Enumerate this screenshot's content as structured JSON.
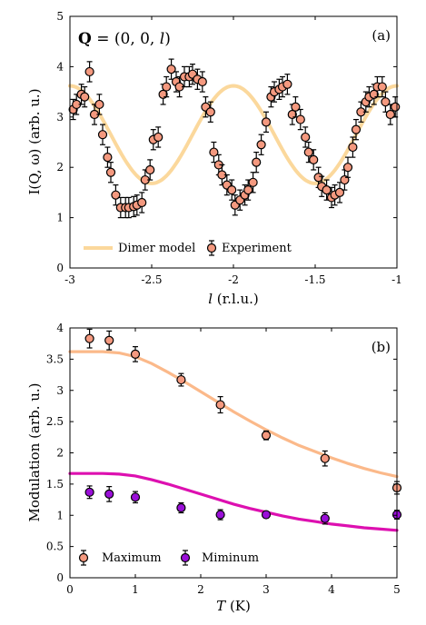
{
  "chart_data": [
    {
      "type": "scatter",
      "panel_label": "(a)",
      "annotation": "Q = (0, 0, l)",
      "xlabel_symbol": "l",
      "xlabel_unit": "(r.l.u.)",
      "ylabel": "I(Q, ω) (arb. u.)",
      "xlim": [
        -3,
        -1
      ],
      "ylim": [
        0,
        5
      ],
      "xticks": [
        -3,
        -2.5,
        -2,
        -1.5,
        -1
      ],
      "xtick_labels": [
        "-3",
        "-2.5",
        "-2",
        "-1.5",
        "-1"
      ],
      "yticks": [
        0,
        1,
        2,
        3,
        4,
        5
      ],
      "ytick_labels": [
        "0",
        "1",
        "2",
        "3",
        "4",
        "5"
      ],
      "legend": [
        "Dimer model",
        "Experiment"
      ],
      "legend_placement": "bottom-left",
      "grid": false,
      "line": {
        "name": "Dimer model",
        "color": "#fbd89c",
        "formula": "2.65 + 0.97*cos(2*pi*l)"
      },
      "series": [
        {
          "name": "Experiment",
          "color": "#f4997f",
          "x": [
            -2.98,
            -2.96,
            -2.93,
            -2.91,
            -2.88,
            -2.85,
            -2.82,
            -2.8,
            -2.77,
            -2.75,
            -2.72,
            -2.69,
            -2.66,
            -2.64,
            -2.61,
            -2.59,
            -2.56,
            -2.54,
            -2.51,
            -2.49,
            -2.46,
            -2.43,
            -2.41,
            -2.38,
            -2.35,
            -2.33,
            -2.3,
            -2.27,
            -2.25,
            -2.22,
            -2.19,
            -2.17,
            -2.14,
            -2.12,
            -2.09,
            -2.07,
            -2.04,
            -2.01,
            -1.99,
            -1.96,
            -1.93,
            -1.91,
            -1.88,
            -1.86,
            -1.83,
            -1.8,
            -1.77,
            -1.75,
            -1.72,
            -1.7,
            -1.67,
            -1.64,
            -1.62,
            -1.59,
            -1.56,
            -1.54,
            -1.51,
            -1.48,
            -1.46,
            -1.43,
            -1.4,
            -1.38,
            -1.35,
            -1.32,
            -1.3,
            -1.27,
            -1.25,
            -1.22,
            -1.19,
            -1.17,
            -1.14,
            -1.12,
            -1.09,
            -1.07,
            -1.04,
            -1.01
          ],
          "y": [
            3.15,
            3.25,
            3.45,
            3.4,
            3.9,
            3.05,
            3.25,
            2.65,
            2.2,
            1.9,
            1.45,
            1.2,
            1.2,
            1.2,
            1.22,
            1.25,
            1.3,
            1.75,
            1.95,
            2.55,
            2.6,
            3.45,
            3.6,
            3.95,
            3.7,
            3.6,
            3.8,
            3.8,
            3.85,
            3.75,
            3.7,
            3.2,
            3.1,
            2.3,
            2.05,
            1.85,
            1.65,
            1.55,
            1.25,
            1.35,
            1.45,
            1.55,
            1.7,
            2.1,
            2.45,
            2.9,
            3.4,
            3.5,
            3.55,
            3.6,
            3.65,
            3.05,
            3.2,
            2.95,
            2.6,
            2.3,
            2.15,
            1.8,
            1.62,
            1.55,
            1.4,
            1.45,
            1.5,
            1.75,
            2.0,
            2.4,
            2.75,
            3.1,
            3.3,
            3.4,
            3.45,
            3.6,
            3.6,
            3.3,
            3.05,
            3.2
          ],
          "yerr": 0.2
        }
      ]
    },
    {
      "type": "scatter",
      "panel_label": "(b)",
      "xlabel_symbol": "T",
      "xlabel_unit": "(K)",
      "ylabel": "Modulation (arb. u.)",
      "xlim": [
        0,
        5
      ],
      "ylim": [
        0,
        4
      ],
      "xticks": [
        0,
        1,
        2,
        3,
        4,
        5
      ],
      "xtick_labels": [
        "0",
        "1",
        "2",
        "3",
        "4",
        "5"
      ],
      "yticks": [
        0,
        0.5,
        1,
        1.5,
        2,
        2.5,
        3,
        3.5,
        4
      ],
      "ytick_labels": [
        "0",
        "0.5",
        "1",
        "1.5",
        "2",
        "2.5",
        "3",
        "3.5",
        "4"
      ],
      "legend": [
        "Maximum",
        "Miminum"
      ],
      "legend_placement": "bottom-left",
      "grid": false,
      "lines": [
        {
          "color": "#fbb98a",
          "x": [
            0,
            0.25,
            0.5,
            0.75,
            1,
            1.25,
            1.5,
            1.75,
            2,
            2.25,
            2.5,
            2.75,
            3,
            3.25,
            3.5,
            3.75,
            4,
            4.25,
            4.5,
            4.75,
            5
          ],
          "y": [
            3.62,
            3.62,
            3.62,
            3.6,
            3.54,
            3.43,
            3.29,
            3.14,
            2.98,
            2.82,
            2.66,
            2.51,
            2.37,
            2.24,
            2.12,
            2.02,
            1.92,
            1.83,
            1.75,
            1.68,
            1.62
          ]
        },
        {
          "color": "#dd10b0",
          "x": [
            0,
            0.25,
            0.5,
            0.75,
            1,
            1.25,
            1.5,
            1.75,
            2,
            2.25,
            2.5,
            2.75,
            3,
            3.25,
            3.5,
            3.75,
            4,
            4.25,
            4.5,
            4.75,
            5
          ],
          "y": [
            1.67,
            1.67,
            1.67,
            1.66,
            1.63,
            1.57,
            1.5,
            1.42,
            1.34,
            1.26,
            1.18,
            1.11,
            1.05,
            0.99,
            0.94,
            0.9,
            0.86,
            0.83,
            0.8,
            0.78,
            0.76
          ]
        }
      ],
      "series": [
        {
          "name": "Maximum",
          "color": "#f4997f",
          "x": [
            0.3,
            0.6,
            1.0,
            1.7,
            2.3,
            3.0,
            3.9,
            5.0
          ],
          "y": [
            3.83,
            3.8,
            3.58,
            3.17,
            2.77,
            2.28,
            1.91,
            1.44
          ],
          "yerr": [
            0.15,
            0.15,
            0.12,
            0.1,
            0.13,
            0.07,
            0.12,
            0.1
          ]
        },
        {
          "name": "Miminum",
          "color": "#9a0fd8",
          "x": [
            0.3,
            0.6,
            1.0,
            1.7,
            2.3,
            3.0,
            3.9,
            5.0
          ],
          "y": [
            1.37,
            1.34,
            1.29,
            1.12,
            1.01,
            1.01,
            0.95,
            1.01
          ],
          "yerr": [
            0.1,
            0.12,
            0.09,
            0.08,
            0.08,
            0.05,
            0.09,
            0.07
          ]
        }
      ]
    }
  ]
}
